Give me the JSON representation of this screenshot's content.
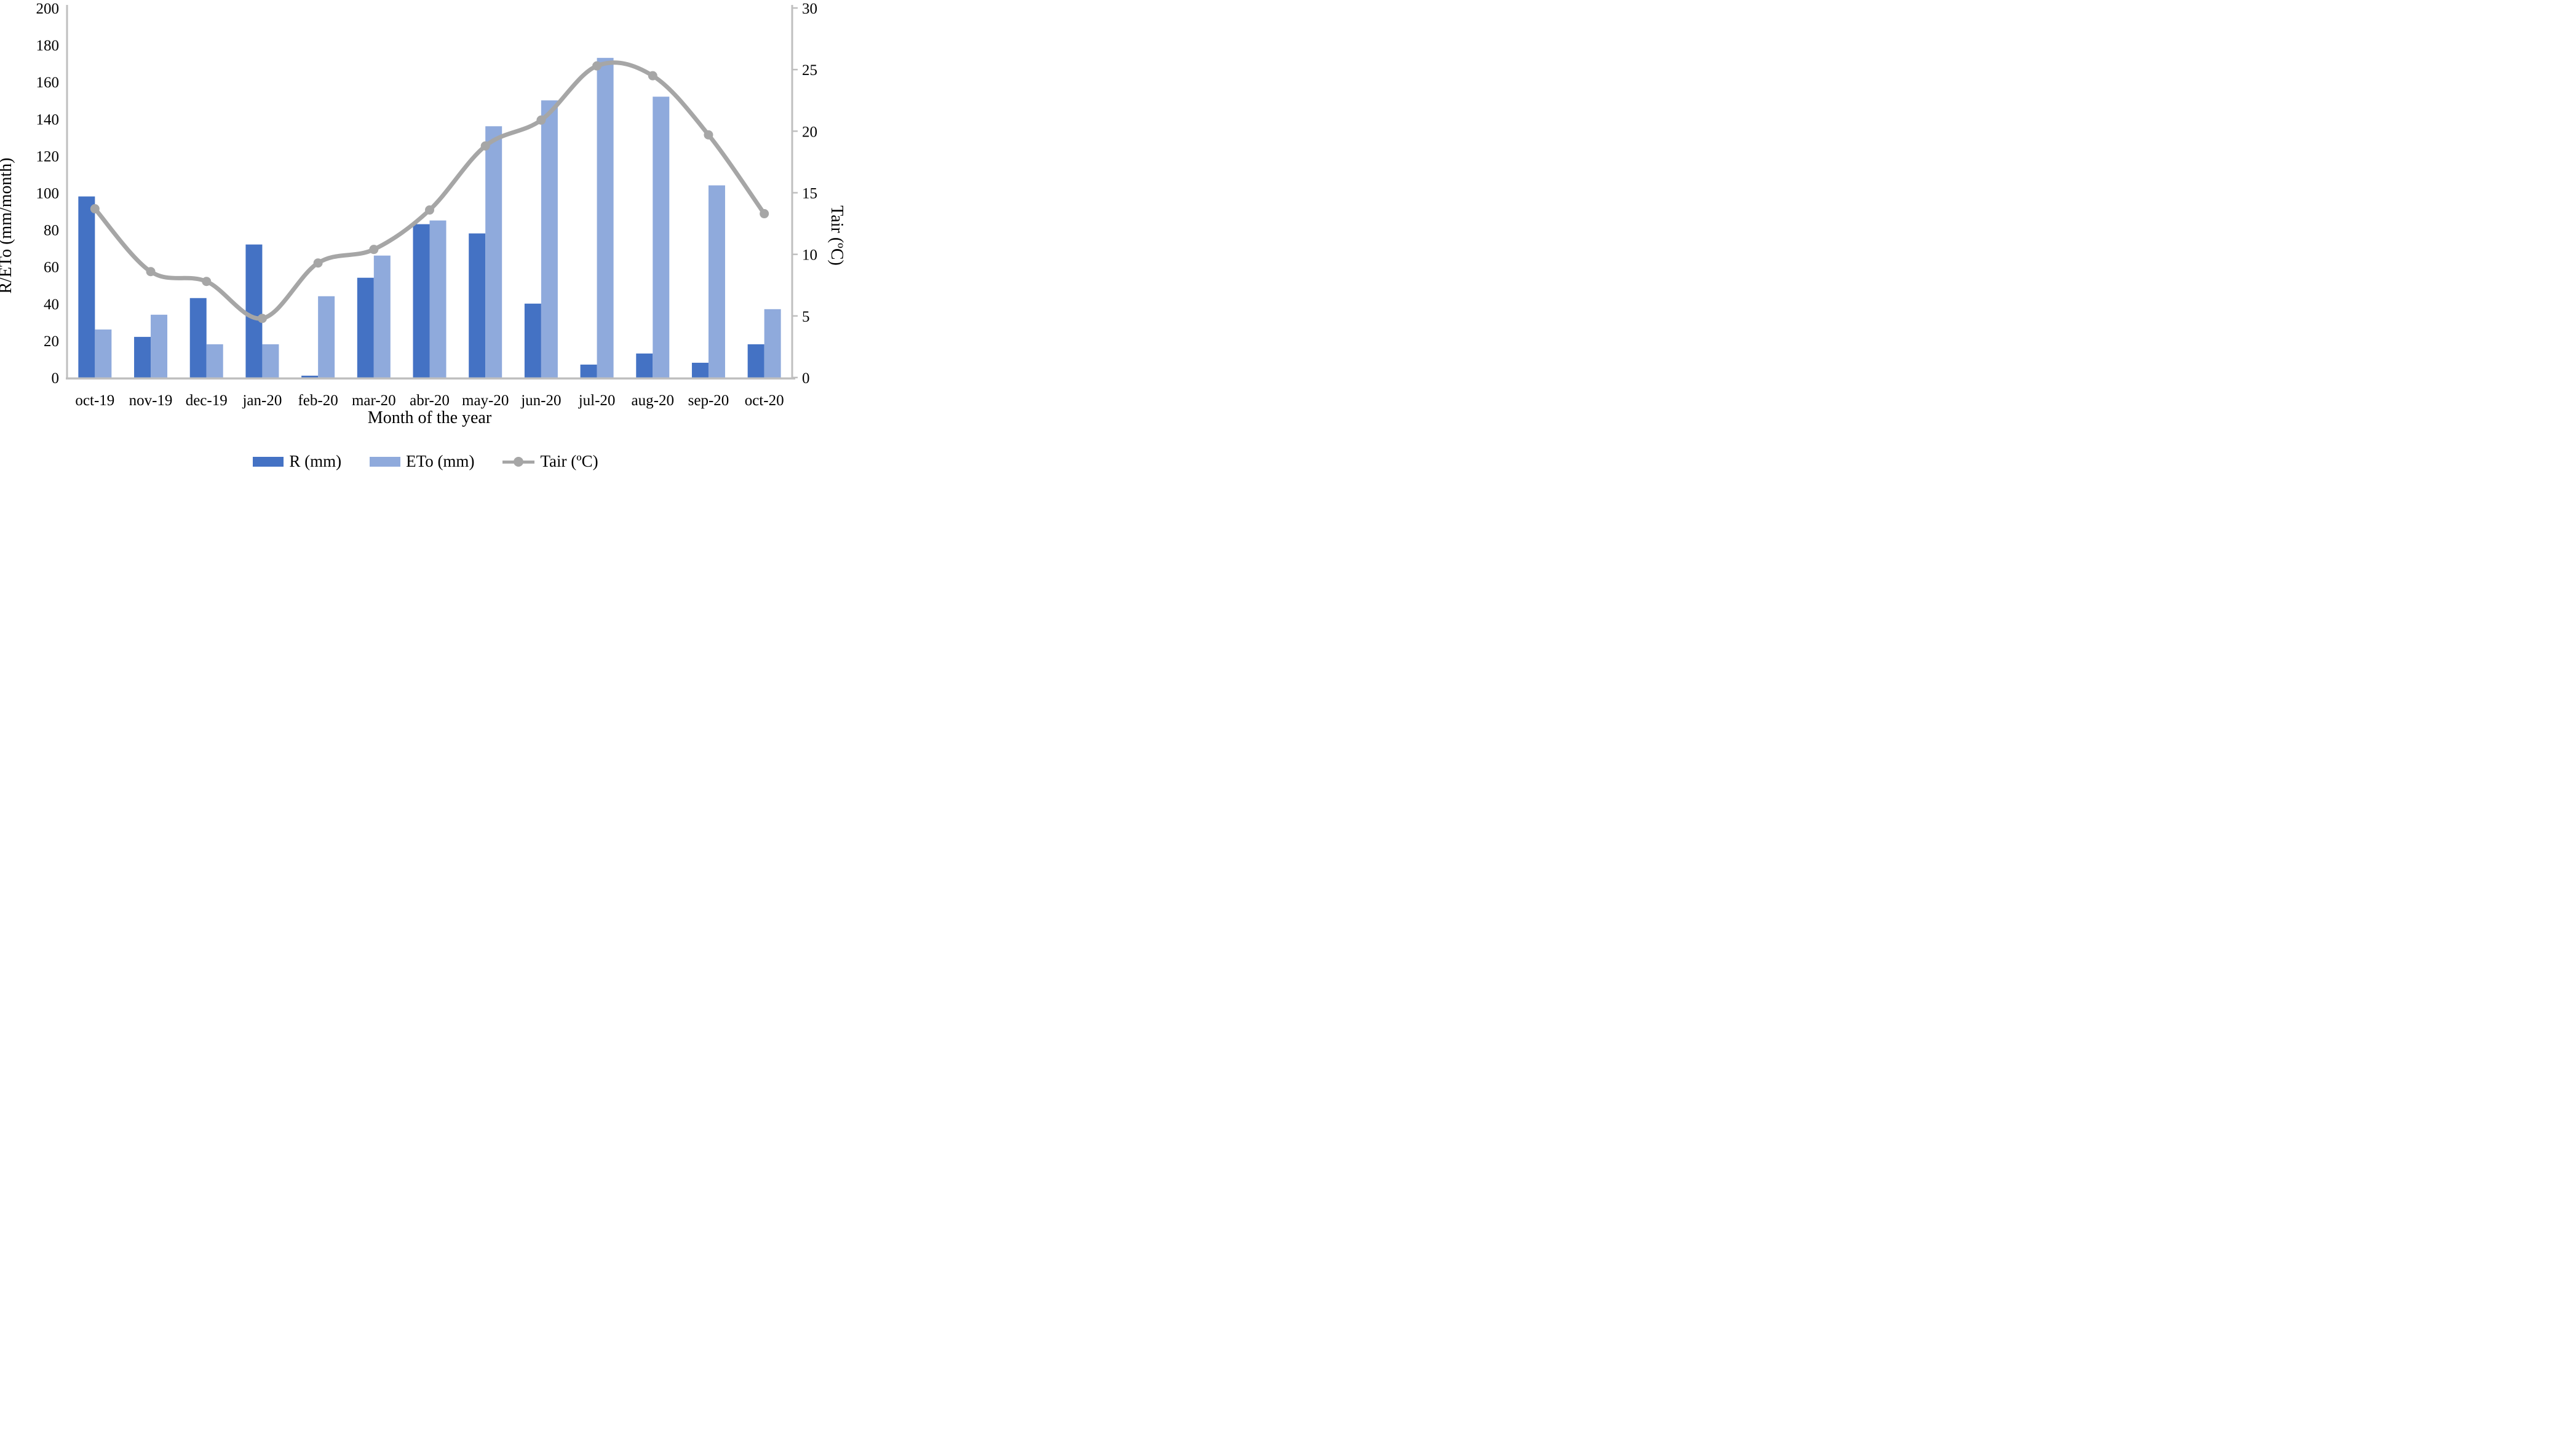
{
  "chart_data": {
    "type": "bar",
    "subtype": "combo-bar-line-dual-axis",
    "categories": [
      "oct-19",
      "nov-19",
      "dec-19",
      "jan-20",
      "feb-20",
      "mar-20",
      "abr-20",
      "may-20",
      "jun-20",
      "jul-20",
      "aug-20",
      "sep-20",
      "oct-20"
    ],
    "series": [
      {
        "name": "R (mm)",
        "type": "bar",
        "axis": "left",
        "color": "#4472C4",
        "values": [
          98,
          22,
          43,
          72,
          1,
          54,
          83,
          78,
          40,
          7,
          13,
          8,
          18
        ]
      },
      {
        "name": "ETo (mm)",
        "type": "bar",
        "axis": "left",
        "color": "#8FAADC",
        "values": [
          26,
          34,
          18,
          18,
          44,
          66,
          85,
          136,
          150,
          173,
          152,
          104,
          37
        ]
      },
      {
        "name": "Tair (ºC)",
        "type": "line",
        "axis": "right",
        "color": "#A6A6A6",
        "marker": "circle",
        "values": [
          13.7,
          8.6,
          7.8,
          4.8,
          9.3,
          10.4,
          13.6,
          18.8,
          20.9,
          25.3,
          24.5,
          19.7,
          13.3
        ]
      }
    ],
    "left_axis": {
      "title": "R/ETo (mm/month)",
      "min": 0,
      "max": 200,
      "step": 20
    },
    "right_axis": {
      "title": "Tair (ºC)",
      "min": 0,
      "max": 30,
      "step": 5
    },
    "x_axis": {
      "title": "Month of the year"
    },
    "grid": false,
    "legend_position": "bottom",
    "axis_line_color": "#BFBFBF",
    "text_color": "#000000",
    "background": "#FFFFFF"
  }
}
